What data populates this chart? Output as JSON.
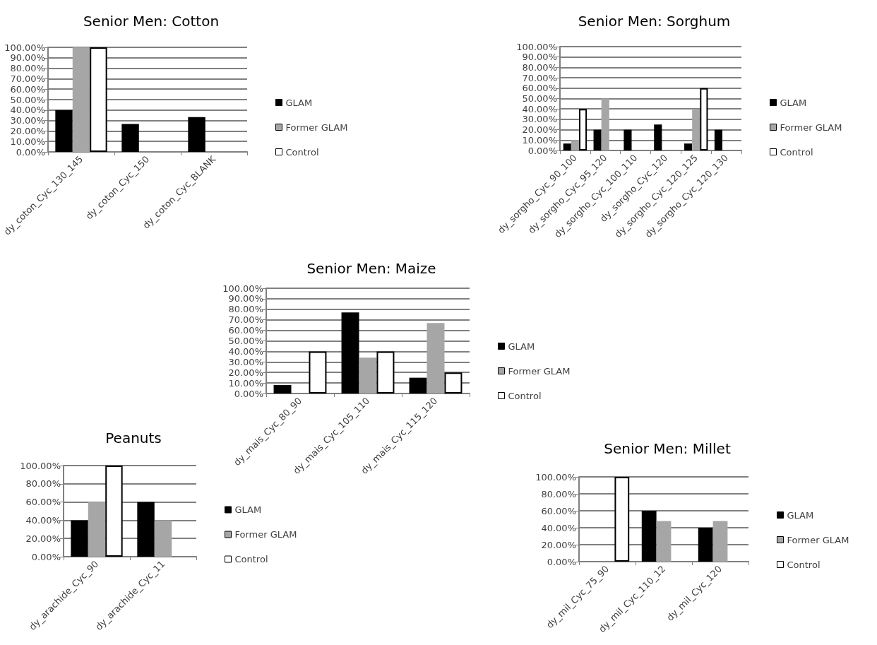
{
  "chart_data": [
    {
      "type": "bar",
      "title": "Senior Men: Cotton",
      "categories": [
        "dy_coton_Cyc_130_145",
        "dy_coton_Cyc_150",
        "dy_coton_Cyc_BLANK"
      ],
      "series": [
        {
          "name": "GLAM",
          "color": "#000000",
          "values": [
            40,
            26.7,
            33.3
          ]
        },
        {
          "name": "Former GLAM",
          "color": "#a6a6a6",
          "values": [
            100,
            null,
            null
          ]
        },
        {
          "name": "Control",
          "color": "#ffffff",
          "values": [
            100,
            null,
            null
          ]
        }
      ],
      "ylim": [
        0,
        100
      ],
      "yticks": [
        {
          "value": 0,
          "label": "0.00%"
        },
        {
          "value": 10,
          "label": "10.00%"
        },
        {
          "value": 20,
          "label": "20.00%"
        },
        {
          "value": 30,
          "label": "30.00%"
        },
        {
          "value": 40,
          "label": "40.00%"
        },
        {
          "value": 50,
          "label": "50.00%"
        },
        {
          "value": 60,
          "label": "60.00%"
        },
        {
          "value": 70,
          "label": "70.00%"
        },
        {
          "value": 80,
          "label": "80.00%"
        },
        {
          "value": 90,
          "label": "90.00%"
        },
        {
          "value": 100,
          "label": "100.00%"
        }
      ],
      "grid": "y",
      "legend": "right"
    },
    {
      "type": "bar",
      "title": "Senior Men: Sorghum",
      "categories": [
        "dy_sorgho_Cyc_90_100",
        "dy_sorgho_Cyc_95_120",
        "dy_sorgho_Cyc_100_110",
        "dy_sorgho_Cyc_120",
        "dy_sorgho_Cyc_120_125",
        "dy_sorgho_Cyc_120_130"
      ],
      "series": [
        {
          "name": "GLAM",
          "color": "#000000",
          "values": [
            6.7,
            20,
            20,
            25,
            6.7,
            20
          ]
        },
        {
          "name": "Former GLAM",
          "color": "#a6a6a6",
          "values": [
            10,
            50,
            null,
            null,
            40,
            null
          ]
        },
        {
          "name": "Control",
          "color": "#ffffff",
          "values": [
            40,
            null,
            null,
            null,
            60,
            null
          ]
        }
      ],
      "ylim": [
        0,
        100
      ],
      "yticks": [
        {
          "value": 0,
          "label": "0.00%"
        },
        {
          "value": 10,
          "label": "10.00%"
        },
        {
          "value": 20,
          "label": "20.00%"
        },
        {
          "value": 30,
          "label": "30.00%"
        },
        {
          "value": 40,
          "label": "40.00%"
        },
        {
          "value": 50,
          "label": "50.00%"
        },
        {
          "value": 60,
          "label": "60.00%"
        },
        {
          "value": 70,
          "label": "70.00%"
        },
        {
          "value": 80,
          "label": "80.00%"
        },
        {
          "value": 90,
          "label": "90.00%"
        },
        {
          "value": 100,
          "label": "100.00%"
        }
      ],
      "grid": "y",
      "legend": "right"
    },
    {
      "type": "bar",
      "title": "Senior Men: Maize",
      "categories": [
        "dy_mais_Cyc_80_90",
        "dy_mais_Cyc_105_110",
        "dy_mais_Cyc_115_120"
      ],
      "series": [
        {
          "name": "GLAM",
          "color": "#000000",
          "values": [
            8,
            77,
            15
          ]
        },
        {
          "name": "Former GLAM",
          "color": "#a6a6a6",
          "values": [
            null,
            34,
            67
          ]
        },
        {
          "name": "Control",
          "color": "#ffffff",
          "values": [
            40,
            40,
            20
          ]
        }
      ],
      "ylim": [
        0,
        100
      ],
      "yticks": [
        {
          "value": 0,
          "label": "0.00%"
        },
        {
          "value": 10,
          "label": "10.00%"
        },
        {
          "value": 20,
          "label": "20.00%"
        },
        {
          "value": 30,
          "label": "30.00%"
        },
        {
          "value": 40,
          "label": "40.00%"
        },
        {
          "value": 50,
          "label": "50.00%"
        },
        {
          "value": 60,
          "label": "60.00%"
        },
        {
          "value": 70,
          "label": "70.00%"
        },
        {
          "value": 80,
          "label": "80.00%"
        },
        {
          "value": 90,
          "label": "90.00%"
        },
        {
          "value": 100,
          "label": "100.00%"
        }
      ],
      "grid": "y",
      "legend": "right"
    },
    {
      "type": "bar",
      "title": "Peanuts",
      "categories": [
        "dy_arachide_Cyc_90",
        "dy_arachide_Cyc_11"
      ],
      "series": [
        {
          "name": "GLAM",
          "color": "#000000",
          "values": [
            40,
            60
          ]
        },
        {
          "name": "Former GLAM",
          "color": "#a6a6a6",
          "values": [
            60,
            40
          ]
        },
        {
          "name": "Control",
          "color": "#ffffff",
          "values": [
            100,
            null
          ]
        }
      ],
      "ylim": [
        0,
        100
      ],
      "yticks": [
        {
          "value": 0,
          "label": "0.00%"
        },
        {
          "value": 20,
          "label": "20.00%"
        },
        {
          "value": 40,
          "label": "40.00%"
        },
        {
          "value": 60,
          "label": "60.00%"
        },
        {
          "value": 80,
          "label": "80.00%"
        },
        {
          "value": 100,
          "label": "100.00%"
        }
      ],
      "grid": "y",
      "legend": "right"
    },
    {
      "type": "bar",
      "title": "Senior Men: Millet",
      "categories": [
        "dy_mil_Cyc_75_90",
        "dy_mil_Cyc_110_12",
        "dy_mil_Cyc_120"
      ],
      "series": [
        {
          "name": "GLAM",
          "color": "#000000",
          "values": [
            null,
            60,
            40
          ]
        },
        {
          "name": "Former GLAM",
          "color": "#a6a6a6",
          "values": [
            null,
            48,
            48
          ]
        },
        {
          "name": "Control",
          "color": "#ffffff",
          "values": [
            100,
            null,
            null
          ]
        }
      ],
      "ylim": [
        0,
        100
      ],
      "yticks": [
        {
          "value": 0,
          "label": "0.00%"
        },
        {
          "value": 20,
          "label": "20.00%"
        },
        {
          "value": 40,
          "label": "40.00%"
        },
        {
          "value": 60,
          "label": "60.00%"
        },
        {
          "value": 80,
          "label": "80.00%"
        },
        {
          "value": 100,
          "label": "100.00%"
        }
      ],
      "grid": "y",
      "legend": "right"
    }
  ]
}
